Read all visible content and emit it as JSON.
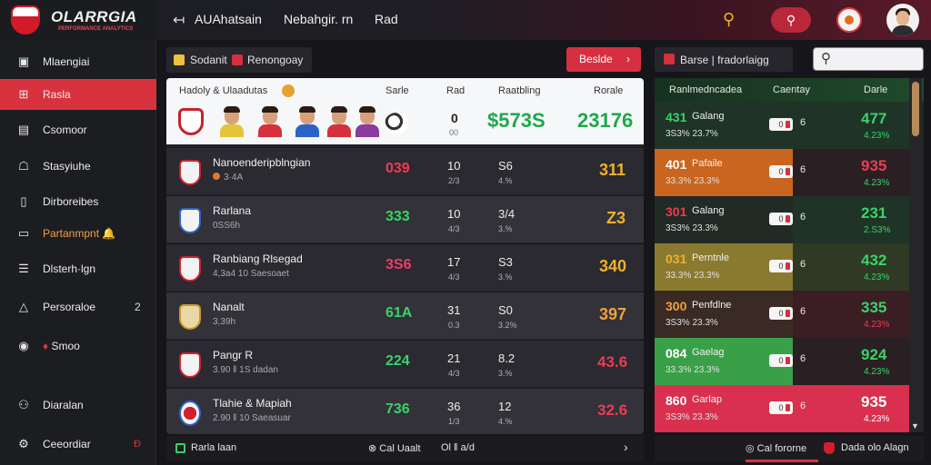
{
  "app": {
    "logo_text": "OLARRGIA",
    "logo_sub": "PERFORMANCE ANALYTICS",
    "back_icon": "arrow-left-icon",
    "title": "AUAhatsain",
    "nav": [
      "Nebahgir. rn",
      "Rad"
    ],
    "search_icon": "search-icon",
    "pill_icon": "search-icon",
    "badge_icon": "team-badge-icon"
  },
  "sidebar": {
    "items": [
      {
        "label": "Mlaengiai",
        "icon": "dashboard-icon"
      },
      {
        "label": "Rasla",
        "icon": "grid-icon",
        "active": true
      },
      {
        "label": "Csomoor",
        "icon": "calendar-icon"
      },
      {
        "label": "Stasyiuhe",
        "icon": "player-icon"
      },
      {
        "label": "Dirboreibes",
        "icon": "document-icon"
      },
      {
        "label": "Partanmpnt",
        "icon": "screen-icon",
        "badge": "🔔"
      },
      {
        "label": "Dlsterh·lgn",
        "icon": "list-icon"
      },
      {
        "label": "Persoraloe",
        "icon": "sort-icon",
        "count": "2"
      },
      {
        "label": "Smoo",
        "icon": "record-icon",
        "alert": "♦"
      },
      {
        "label": "Diaralan",
        "icon": "idea-icon"
      },
      {
        "label": "Ceeordiar",
        "icon": "settings-icon",
        "alert": "Ð"
      }
    ]
  },
  "toolbar": {
    "filter1": "Sodanit",
    "filter2": "Renongoay",
    "action_label": "Beslde",
    "action_arrow": "›"
  },
  "table": {
    "headers": {
      "team": "Hadoly & Ulaadutas",
      "score": "Sarle",
      "played": "Rad",
      "points": "Raatbling",
      "rank": "Rorale"
    },
    "featured": {
      "played": "0",
      "played_sub": "00",
      "value": "$573S",
      "rank": "23176"
    },
    "rows": [
      {
        "name": "Nanoenderipblngian",
        "sub": "3·4A",
        "val": "039",
        "played": "10",
        "played_sub": "2/3",
        "pts": "S6",
        "pts_sub": "4.%",
        "rank": "311",
        "val_color": "#ef3b52",
        "rank_color": "#f0b030"
      },
      {
        "name": "Rarlana",
        "sub": "0SS6h",
        "val": "333",
        "played": "10",
        "played_sub": "4/3",
        "pts": "3/4",
        "pts_sub": "3.%",
        "rank": "Z3",
        "val_color": "#3ad26a",
        "rank_color": "#f0b030"
      },
      {
        "name": "Ranbiang Rlsegad",
        "sub": "4,3a4 10 Saesoaet",
        "val": "3S6",
        "played": "17",
        "played_sub": "4/3",
        "pts": "S3",
        "pts_sub": "3.%",
        "rank": "340",
        "val_color": "#ef3b6a",
        "rank_color": "#f0b030"
      },
      {
        "name": "Nanalt",
        "sub": "3,39h",
        "val": "61A",
        "played": "31",
        "played_sub": "0.3",
        "pts": "S0",
        "pts_sub": "3.2%",
        "rank": "397",
        "val_color": "#3ad26a",
        "rank_color": "#f0a040"
      },
      {
        "name": "Pangr R",
        "sub": "3.90 ‖ 1S dadan",
        "val": "224",
        "played": "21",
        "played_sub": "4/3",
        "pts": "8.2",
        "pts_sub": "3.%",
        "rank": "43.6",
        "val_color": "#3ad26a",
        "rank_color": "#ef3b52"
      },
      {
        "name": "Tlahie & Mapiah",
        "sub": "2.90 ‖ 10 Saeasuar",
        "val": "736",
        "played": "36",
        "played_sub": "1/3",
        "pts": "12",
        "pts_sub": "4.%",
        "rank": "32.6",
        "val_color": "#3ad26a",
        "rank_color": "#ef3b52"
      }
    ]
  },
  "right_panel": {
    "head": "Barse | fradorlaigg",
    "search_icon": "search-icon",
    "headers": {
      "a": "Ranlmedncadea",
      "b": "Caentay",
      "c": "Darle"
    },
    "rows": [
      {
        "val": "431",
        "name": "Galang",
        "sub": "3S3% 23.7%",
        "toggle": "0",
        "num": "6",
        "big": "477",
        "pct": "4.23%",
        "left_bg": "#1f3326",
        "right_bg": "#1f3326",
        "val_color": "#3ad26a",
        "big_color": "#3ad26a",
        "pct_color": "#3ad26a"
      },
      {
        "val": "401",
        "name": "Pafaile",
        "sub": "33.3% 23.3%",
        "toggle": "0",
        "num": "6",
        "big": "935",
        "pct": "4.23%",
        "left_bg": "#c9651e",
        "right_bg": "#2a2024",
        "val_color": "#ffffff",
        "big_color": "#ef3b52",
        "pct_color": "#3ad26a"
      },
      {
        "val": "301",
        "name": "Galang",
        "sub": "3S3% 23.3%",
        "toggle": "0",
        "num": "6",
        "big": "231",
        "pct": "2.S3%",
        "left_bg": "#222a25",
        "right_bg": "#1f3326",
        "val_color": "#ef3b52",
        "big_color": "#3ad26a",
        "pct_color": "#3ad26a"
      },
      {
        "val": "031",
        "name": "Perntnle",
        "sub": "33.3% 23.3%",
        "toggle": "0",
        "num": "6",
        "big": "432",
        "pct": "4.23%",
        "left_bg": "#8a7a30",
        "right_bg": "#2e3a24",
        "val_color": "#f0b030",
        "big_color": "#3ad26a",
        "pct_color": "#3ad26a"
      },
      {
        "val": "300",
        "name": "Penfdlne",
        "sub": "3S3% 23.3%",
        "toggle": "0",
        "num": "6",
        "big": "335",
        "pct": "4.23%",
        "left_bg": "#3a2a24",
        "right_bg": "#3a1e24",
        "val_color": "#f0a040",
        "big_color": "#3ad26a",
        "pct_color": "#ef3b52"
      },
      {
        "val": "084",
        "name": "Gaelag",
        "sub": "33.3% 23.3%",
        "toggle": "0",
        "num": "6",
        "big": "924",
        "pct": "4.23%",
        "left_bg": "#3aa048",
        "right_bg": "#2a2024",
        "val_color": "#ffffff",
        "big_color": "#3ad26a",
        "pct_color": "#3ad26a"
      },
      {
        "val": "860",
        "name": "Garlap",
        "sub": "3S3% 23.3%",
        "toggle": "0",
        "num": "6",
        "big": "935",
        "pct": "4.23%",
        "left_bg": "#d8304e",
        "right_bg": "#d8304e",
        "val_color": "#ffffff",
        "big_color": "#ffffff",
        "pct_color": "#ffffff"
      }
    ]
  },
  "bottom": {
    "left_label": "Rarla laan",
    "mid_label": "Cal Uaalt",
    "mid2_label": "Ol ‖ a/d",
    "chevron": "›",
    "right_label": "Cal fororne",
    "right2_label": "Dada olo Alagn"
  }
}
